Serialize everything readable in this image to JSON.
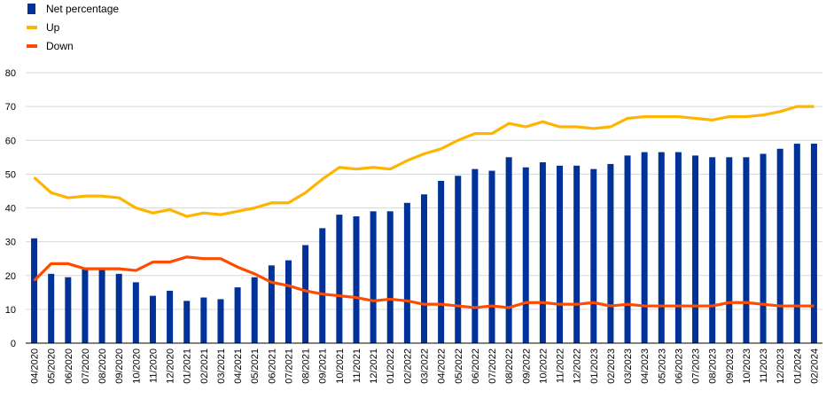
{
  "chart_data": {
    "type": "bar",
    "categories": [
      "04/2020",
      "05/2020",
      "06/2020",
      "07/2020",
      "08/2020",
      "09/2020",
      "10/2020",
      "11/2020",
      "12/2020",
      "01/2021",
      "02/2021",
      "03/2021",
      "04/2021",
      "05/2021",
      "06/2021",
      "07/2021",
      "08/2021",
      "09/2021",
      "10/2021",
      "11/2021",
      "12/2021",
      "01/2022",
      "02/2022",
      "03/2022",
      "04/2022",
      "05/2022",
      "06/2022",
      "07/2022",
      "08/2022",
      "09/2022",
      "10/2022",
      "11/2022",
      "12/2022",
      "01/2023",
      "02/2023",
      "03/2023",
      "04/2023",
      "05/2023",
      "06/2023",
      "07/2023",
      "08/2023",
      "09/2023",
      "10/2023",
      "11/2023",
      "12/2023",
      "01/2024",
      "02/2024"
    ],
    "series": [
      {
        "name": "Net percentage",
        "kind": "bar",
        "color": "#003299",
        "values": [
          31,
          20.5,
          19.5,
          22,
          22,
          20.5,
          18,
          14,
          15.5,
          12.5,
          13.5,
          13,
          16.5,
          19.5,
          23,
          24.5,
          29,
          34,
          38,
          37.5,
          39,
          39,
          41.5,
          44,
          48,
          49.5,
          51.5,
          51,
          55,
          52,
          53.5,
          52.5,
          52.5,
          51.5,
          53,
          55.5,
          56.5,
          56.5,
          56.5,
          55.5,
          55,
          55,
          55,
          56,
          57.5,
          59,
          59
        ]
      },
      {
        "name": "Up",
        "kind": "line",
        "color": "#ffb400",
        "values": [
          49,
          44.5,
          43,
          43.5,
          43.5,
          43,
          40,
          38.5,
          39.5,
          37.5,
          38.5,
          38,
          39,
          40,
          41.5,
          41.5,
          44.5,
          48.5,
          52,
          51.5,
          52,
          51.5,
          54,
          56,
          57.5,
          60,
          62,
          62,
          65,
          64,
          65.5,
          64,
          64,
          63.5,
          64,
          66.5,
          67,
          67,
          67,
          66.5,
          66,
          67,
          67,
          67.5,
          68.5,
          70,
          70
        ],
        "segments": [
          [
            0,
            24
          ],
          [
            24,
            46
          ]
        ]
      },
      {
        "name": "Down",
        "kind": "line",
        "color": "#ff4b00",
        "values": [
          18.5,
          23.5,
          23.5,
          22,
          22,
          22,
          21.5,
          24,
          24,
          25.5,
          25,
          25,
          22.5,
          20.5,
          18,
          17,
          15.5,
          14.5,
          14,
          13.5,
          12.5,
          13,
          12.5,
          11.5,
          11.5,
          11,
          10.5,
          11,
          10.5,
          12,
          12,
          11.5,
          11.5,
          12,
          11,
          11.5,
          11,
          11,
          11,
          11,
          11,
          12,
          12,
          11.5,
          11,
          11,
          11
        ]
      }
    ],
    "ylim": [
      0,
      80
    ],
    "yticks": [
      0,
      10,
      20,
      30,
      40,
      50,
      60,
      70,
      80
    ],
    "grid": true,
    "legend": "top-left"
  }
}
